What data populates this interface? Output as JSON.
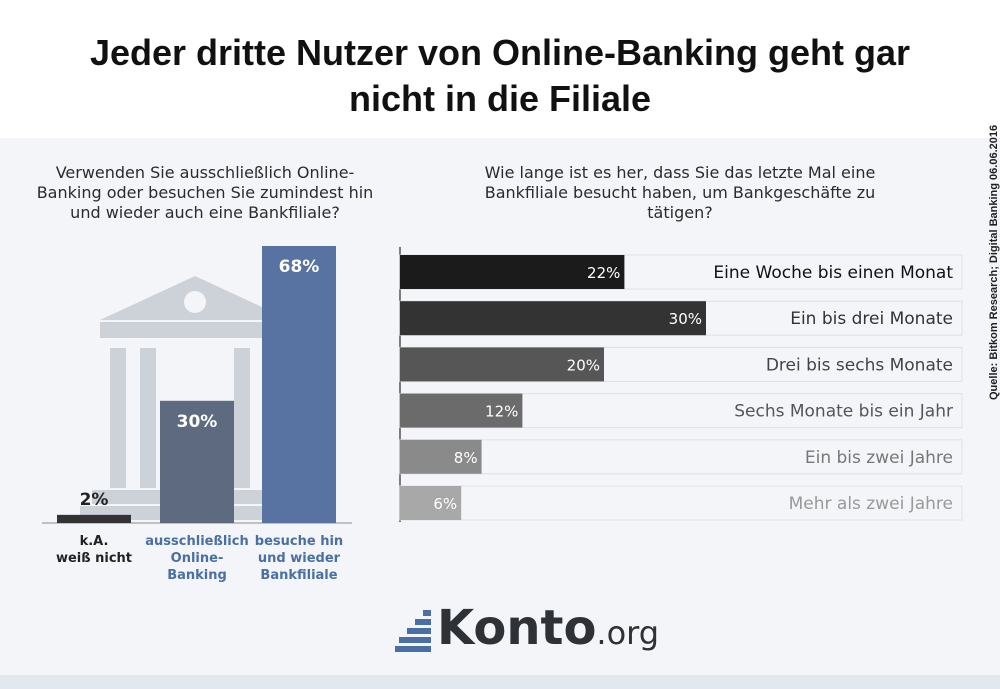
{
  "title": "Jeder dritte Nutzer von Online-Banking geht gar nicht in die Filiale",
  "source": "Quelle: Bitkom Research; Digital Banking 06.06.2016",
  "logo": {
    "name": "Konto",
    "tld": ".org"
  },
  "icons": [
    "bank-building-icon",
    "logo-stairs-icon"
  ],
  "colors": {
    "bar_dark": "#333333",
    "bar_slate": "#5e6a80",
    "bar_blue": "#5873a1",
    "label_blue": "#4a6fa5"
  },
  "chart_data": [
    {
      "type": "bar",
      "title": "Verwenden Sie ausschließlich Online-Banking oder besuchen Sie zumindest hin und wieder auch eine Bankfiliale?",
      "categories": [
        "k.A. weiß nicht",
        "ausschließlich Online-Banking",
        "besuche hin und wieder Bankfiliale"
      ],
      "values": [
        2,
        30,
        68
      ],
      "value_labels": [
        "2%",
        "30%",
        "68%"
      ],
      "category_lines": [
        [
          "k.A.",
          "weiß nicht"
        ],
        [
          "ausschließlich",
          "Online-",
          "Banking"
        ],
        [
          "besuche hin",
          "und wieder",
          "Bankfiliale"
        ]
      ],
      "ylim": [
        0,
        68
      ],
      "grid": false
    },
    {
      "type": "bar",
      "orientation": "horizontal",
      "title": "Wie lange ist es her, dass Sie das letzte Mal eine Bankfiliale besucht haben, um Bankgeschäfte zu tätigen?",
      "categories": [
        "Eine Woche bis einen Monat",
        "Ein bis drei Monate",
        "Drei bis sechs Monate",
        "Sechs Monate bis ein Jahr",
        "Ein bis zwei Jahre",
        "Mehr als zwei Jahre"
      ],
      "values": [
        22,
        30,
        20,
        12,
        8,
        6
      ],
      "value_labels": [
        "22%",
        "30%",
        "20%",
        "12%",
        "8%",
        "6%"
      ],
      "bar_colors": [
        "#1b1b1b",
        "#333333",
        "#565656",
        "#6b6b6b",
        "#8a8a8a",
        "#a8a8a8"
      ],
      "label_colors": [
        "#111111",
        "#333333",
        "#444444",
        "#555555",
        "#777777",
        "#999999"
      ],
      "xlim": [
        0,
        30
      ],
      "grid": false
    }
  ]
}
